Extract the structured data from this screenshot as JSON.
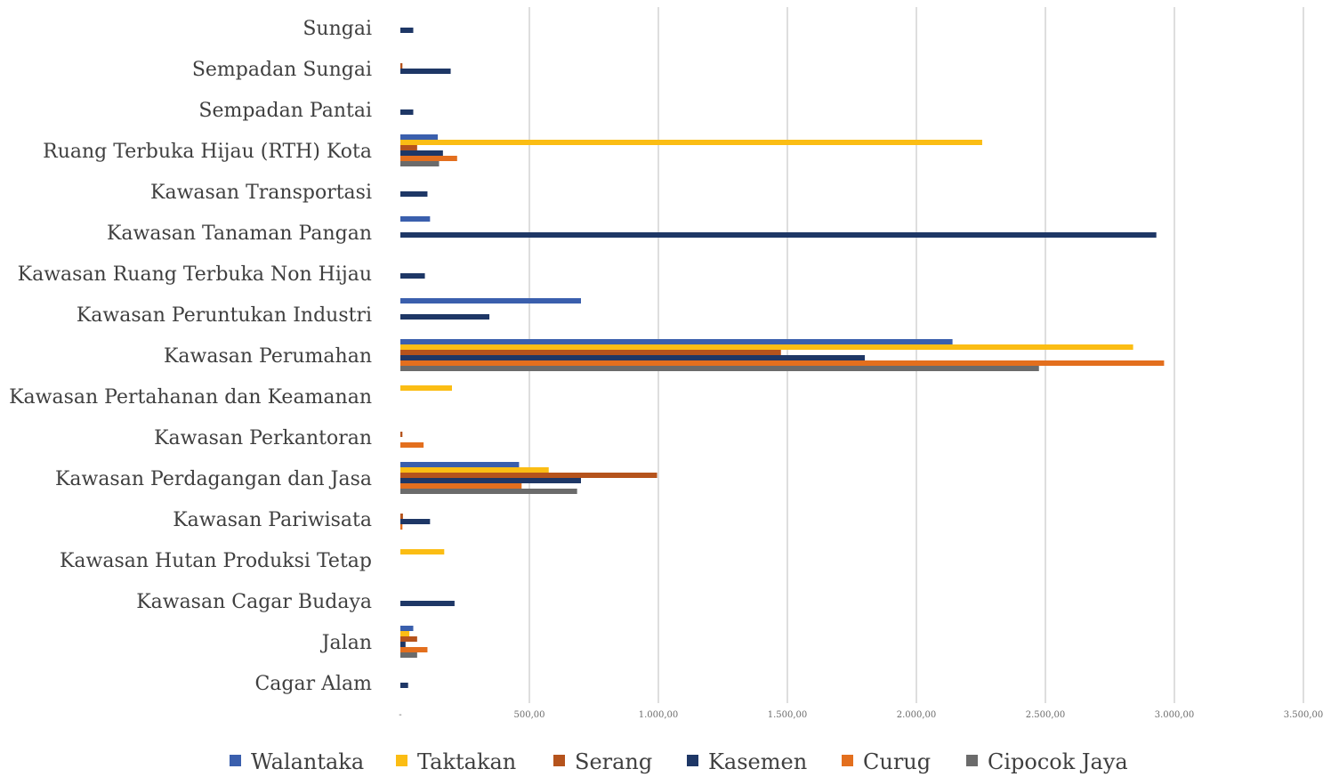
{
  "chart_data": {
    "type": "bar",
    "orientation": "horizontal",
    "categories": [
      "Sungai",
      "Sempadan Sungai",
      "Sempadan Pantai",
      "Ruang Terbuka Hijau (RTH) Kota",
      "Kawasan Transportasi",
      "Kawasan Tanaman Pangan",
      "Kawasan Ruang Terbuka Non Hijau",
      "Kawasan Peruntukan Industri",
      "Kawasan Perumahan",
      "Kawasan Pertahanan dan Keamanan",
      "Kawasan Perkantoran",
      "Kawasan Perdagangan dan Jasa",
      "Kawasan Pariwisata",
      "Kawasan Hutan Produksi Tetap",
      "Kawasan Cagar Budaya",
      "Jalan",
      "Cagar Alam"
    ],
    "series": [
      {
        "name": "Walantaka",
        "color": "#3a5fad",
        "values": [
          0,
          0,
          0,
          145,
          0,
          115,
          0,
          700,
          2140,
          0,
          0,
          460,
          0,
          0,
          0,
          50,
          0
        ]
      },
      {
        "name": "Taktakan",
        "color": "#fbbd14",
        "values": [
          0,
          0,
          0,
          2255,
          0,
          0,
          0,
          0,
          2840,
          200,
          0,
          575,
          0,
          170,
          0,
          35,
          0
        ]
      },
      {
        "name": "Serang",
        "color": "#b5531c",
        "values": [
          0,
          8,
          0,
          65,
          0,
          0,
          0,
          0,
          1475,
          0,
          8,
          995,
          10,
          0,
          0,
          65,
          0
        ]
      },
      {
        "name": "Kasemen",
        "color": "#1e3766",
        "values": [
          50,
          195,
          50,
          165,
          105,
          2930,
          95,
          345,
          1800,
          0,
          0,
          700,
          115,
          0,
          210,
          20,
          30
        ]
      },
      {
        "name": "Curug",
        "color": "#e36f1e",
        "values": [
          0,
          0,
          0,
          220,
          0,
          0,
          0,
          0,
          2960,
          0,
          90,
          470,
          8,
          0,
          0,
          105,
          0
        ]
      },
      {
        "name": "Cipocok Jaya",
        "color": "#6b6b6b",
        "values": [
          0,
          0,
          0,
          150,
          0,
          0,
          0,
          0,
          2475,
          0,
          0,
          685,
          0,
          0,
          0,
          65,
          0
        ]
      }
    ],
    "xlim": [
      0,
      3500
    ],
    "xticks": [
      "-",
      "500,00",
      "1.000,00",
      "1.500,00",
      "2.000,00",
      "2.500,00",
      "3.000,00",
      "3.500,00"
    ],
    "grid": true,
    "legend_position": "bottom"
  }
}
